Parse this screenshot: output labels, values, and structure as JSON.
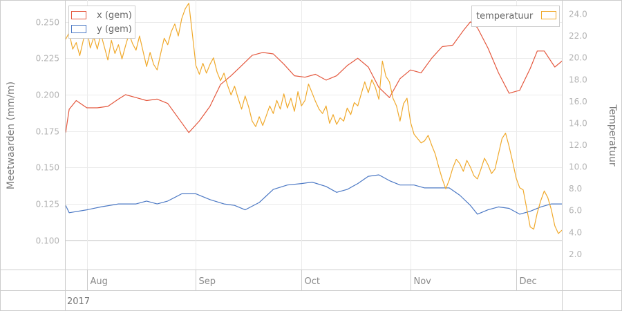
{
  "chart_data": {
    "type": "line",
    "left_axis": {
      "label": "Meetwaarden (mm/m)",
      "range": [
        0.08,
        0.265
      ],
      "ticks": [
        "0.100",
        "0.125",
        "0.150",
        "0.175",
        "0.200",
        "0.225",
        "0.250"
      ]
    },
    "right_axis": {
      "label": "Temperatuur",
      "range": [
        0.6,
        25.3
      ],
      "ticks": [
        "2.0",
        "4.0",
        "6.0",
        "8.0",
        "10.0",
        "12.0",
        "14.0",
        "16.0",
        "18.0",
        "20.0",
        "22.0",
        "24.0"
      ]
    },
    "x_axis": {
      "range": [
        "2017-07-26",
        "2017-12-14"
      ],
      "ticks": [
        {
          "date": "2017-08-01",
          "label": "Aug"
        },
        {
          "date": "2017-09-01",
          "label": "Sep"
        },
        {
          "date": "2017-10-01",
          "label": "Oct"
        },
        {
          "date": "2017-11-01",
          "label": "Nov"
        },
        {
          "date": "2017-12-01",
          "label": "Dec"
        }
      ],
      "year_label": "2017"
    },
    "legend_left": {
      "position": "top-left",
      "items": [
        "x (gem)",
        "y (gem)"
      ]
    },
    "legend_right": {
      "position": "top-right",
      "items": [
        "temperatuur"
      ]
    },
    "grid": true,
    "series": [
      {
        "name": "x (gem)",
        "axis": "left",
        "color": "#e4573d",
        "points": [
          [
            "2017-07-26",
            0.174
          ],
          [
            "2017-07-27",
            0.19
          ],
          [
            "2017-07-29",
            0.196
          ],
          [
            "2017-08-01",
            0.191
          ],
          [
            "2017-08-04",
            0.191
          ],
          [
            "2017-08-07",
            0.192
          ],
          [
            "2017-08-10",
            0.197
          ],
          [
            "2017-08-12",
            0.2
          ],
          [
            "2017-08-15",
            0.198
          ],
          [
            "2017-08-18",
            0.196
          ],
          [
            "2017-08-21",
            0.197
          ],
          [
            "2017-08-24",
            0.194
          ],
          [
            "2017-08-27",
            0.184
          ],
          [
            "2017-08-30",
            0.174
          ],
          [
            "2017-09-02",
            0.182
          ],
          [
            "2017-09-05",
            0.192
          ],
          [
            "2017-09-08",
            0.207
          ],
          [
            "2017-09-11",
            0.213
          ],
          [
            "2017-09-14",
            0.22
          ],
          [
            "2017-09-17",
            0.227
          ],
          [
            "2017-09-20",
            0.229
          ],
          [
            "2017-09-23",
            0.228
          ],
          [
            "2017-09-26",
            0.221
          ],
          [
            "2017-09-29",
            0.213
          ],
          [
            "2017-10-02",
            0.212
          ],
          [
            "2017-10-05",
            0.214
          ],
          [
            "2017-10-08",
            0.21
          ],
          [
            "2017-10-11",
            0.213
          ],
          [
            "2017-10-14",
            0.22
          ],
          [
            "2017-10-17",
            0.225
          ],
          [
            "2017-10-20",
            0.219
          ],
          [
            "2017-10-23",
            0.205
          ],
          [
            "2017-10-26",
            0.198
          ],
          [
            "2017-10-29",
            0.211
          ],
          [
            "2017-11-01",
            0.217
          ],
          [
            "2017-11-04",
            0.215
          ],
          [
            "2017-11-07",
            0.225
          ],
          [
            "2017-11-10",
            0.233
          ],
          [
            "2017-11-13",
            0.234
          ],
          [
            "2017-11-16",
            0.244
          ],
          [
            "2017-11-18",
            0.25
          ],
          [
            "2017-11-20",
            0.246
          ],
          [
            "2017-11-23",
            0.232
          ],
          [
            "2017-11-26",
            0.215
          ],
          [
            "2017-11-29",
            0.201
          ],
          [
            "2017-12-02",
            0.203
          ],
          [
            "2017-12-05",
            0.218
          ],
          [
            "2017-12-07",
            0.23
          ],
          [
            "2017-12-09",
            0.23
          ],
          [
            "2017-12-12",
            0.219
          ],
          [
            "2017-12-14",
            0.223
          ],
          [
            "2017-12-16",
            0.23
          ]
        ]
      },
      {
        "name": "y (gem)",
        "axis": "left",
        "color": "#4b78c4",
        "points": [
          [
            "2017-07-26",
            0.124
          ],
          [
            "2017-07-27",
            0.119
          ],
          [
            "2017-08-01",
            0.121
          ],
          [
            "2017-08-05",
            0.123
          ],
          [
            "2017-08-10",
            0.125
          ],
          [
            "2017-08-15",
            0.125
          ],
          [
            "2017-08-18",
            0.127
          ],
          [
            "2017-08-21",
            0.125
          ],
          [
            "2017-08-24",
            0.127
          ],
          [
            "2017-08-28",
            0.132
          ],
          [
            "2017-09-01",
            0.132
          ],
          [
            "2017-09-05",
            0.128
          ],
          [
            "2017-09-09",
            0.125
          ],
          [
            "2017-09-12",
            0.124
          ],
          [
            "2017-09-15",
            0.121
          ],
          [
            "2017-09-19",
            0.126
          ],
          [
            "2017-09-23",
            0.135
          ],
          [
            "2017-09-27",
            0.138
          ],
          [
            "2017-10-01",
            0.139
          ],
          [
            "2017-10-04",
            0.14
          ],
          [
            "2017-10-08",
            0.137
          ],
          [
            "2017-10-11",
            0.133
          ],
          [
            "2017-10-14",
            0.135
          ],
          [
            "2017-10-17",
            0.139
          ],
          [
            "2017-10-20",
            0.144
          ],
          [
            "2017-10-23",
            0.145
          ],
          [
            "2017-10-26",
            0.141
          ],
          [
            "2017-10-29",
            0.138
          ],
          [
            "2017-11-02",
            0.138
          ],
          [
            "2017-11-05",
            0.136
          ],
          [
            "2017-11-08",
            0.136
          ],
          [
            "2017-11-12",
            0.136
          ],
          [
            "2017-11-15",
            0.131
          ],
          [
            "2017-11-18",
            0.124
          ],
          [
            "2017-11-20",
            0.118
          ],
          [
            "2017-11-23",
            0.121
          ],
          [
            "2017-11-26",
            0.123
          ],
          [
            "2017-11-29",
            0.122
          ],
          [
            "2017-12-02",
            0.118
          ],
          [
            "2017-12-05",
            0.12
          ],
          [
            "2017-12-08",
            0.123
          ],
          [
            "2017-12-11",
            0.125
          ],
          [
            "2017-12-14",
            0.125
          ],
          [
            "2017-12-16",
            0.122
          ]
        ]
      },
      {
        "name": "temperatuur",
        "axis": "right",
        "color": "#f0a92b",
        "points": [
          [
            "2017-07-26",
            21.7
          ],
          [
            "2017-07-27",
            22.3
          ],
          [
            "2017-07-28",
            20.8
          ],
          [
            "2017-07-29",
            21.4
          ],
          [
            "2017-07-30",
            20.2
          ],
          [
            "2017-07-31",
            21.6
          ],
          [
            "2017-08-01",
            22.7
          ],
          [
            "2017-08-02",
            20.9
          ],
          [
            "2017-08-03",
            21.9
          ],
          [
            "2017-08-04",
            20.8
          ],
          [
            "2017-08-05",
            22.2
          ],
          [
            "2017-08-06",
            21.0
          ],
          [
            "2017-08-07",
            19.8
          ],
          [
            "2017-08-08",
            21.6
          ],
          [
            "2017-08-09",
            20.4
          ],
          [
            "2017-08-10",
            21.2
          ],
          [
            "2017-08-11",
            19.9
          ],
          [
            "2017-08-12",
            21.1
          ],
          [
            "2017-08-13",
            22.2
          ],
          [
            "2017-08-14",
            21.3
          ],
          [
            "2017-08-15",
            20.7
          ],
          [
            "2017-08-16",
            22.0
          ],
          [
            "2017-08-17",
            20.6
          ],
          [
            "2017-08-18",
            19.2
          ],
          [
            "2017-08-19",
            20.5
          ],
          [
            "2017-08-20",
            19.4
          ],
          [
            "2017-08-21",
            18.9
          ],
          [
            "2017-08-22",
            20.4
          ],
          [
            "2017-08-23",
            21.8
          ],
          [
            "2017-08-24",
            21.2
          ],
          [
            "2017-08-25",
            22.4
          ],
          [
            "2017-08-26",
            23.1
          ],
          [
            "2017-08-27",
            22.0
          ],
          [
            "2017-08-28",
            23.6
          ],
          [
            "2017-08-29",
            24.5
          ],
          [
            "2017-08-30",
            25.0
          ],
          [
            "2017-08-31",
            22.2
          ],
          [
            "2017-09-01",
            19.3
          ],
          [
            "2017-09-02",
            18.5
          ],
          [
            "2017-09-03",
            19.5
          ],
          [
            "2017-09-04",
            18.6
          ],
          [
            "2017-09-05",
            19.4
          ],
          [
            "2017-09-06",
            20.0
          ],
          [
            "2017-09-07",
            18.7
          ],
          [
            "2017-09-08",
            17.9
          ],
          [
            "2017-09-09",
            18.6
          ],
          [
            "2017-09-10",
            17.5
          ],
          [
            "2017-09-11",
            16.6
          ],
          [
            "2017-09-12",
            17.4
          ],
          [
            "2017-09-13",
            16.3
          ],
          [
            "2017-09-14",
            15.3
          ],
          [
            "2017-09-15",
            16.5
          ],
          [
            "2017-09-16",
            15.5
          ],
          [
            "2017-09-17",
            14.2
          ],
          [
            "2017-09-18",
            13.7
          ],
          [
            "2017-09-19",
            14.6
          ],
          [
            "2017-09-20",
            13.8
          ],
          [
            "2017-09-21",
            14.7
          ],
          [
            "2017-09-22",
            15.6
          ],
          [
            "2017-09-23",
            14.9
          ],
          [
            "2017-09-24",
            16.1
          ],
          [
            "2017-09-25",
            15.3
          ],
          [
            "2017-09-26",
            16.7
          ],
          [
            "2017-09-27",
            15.4
          ],
          [
            "2017-09-28",
            16.3
          ],
          [
            "2017-09-29",
            15.1
          ],
          [
            "2017-09-30",
            16.9
          ],
          [
            "2017-10-01",
            15.6
          ],
          [
            "2017-10-02",
            16.1
          ],
          [
            "2017-10-03",
            17.6
          ],
          [
            "2017-10-04",
            16.8
          ],
          [
            "2017-10-05",
            16.0
          ],
          [
            "2017-10-06",
            15.3
          ],
          [
            "2017-10-07",
            14.9
          ],
          [
            "2017-10-08",
            15.6
          ],
          [
            "2017-10-09",
            14.0
          ],
          [
            "2017-10-10",
            14.8
          ],
          [
            "2017-10-11",
            13.9
          ],
          [
            "2017-10-12",
            14.5
          ],
          [
            "2017-10-13",
            14.2
          ],
          [
            "2017-10-14",
            15.4
          ],
          [
            "2017-10-15",
            14.8
          ],
          [
            "2017-10-16",
            15.9
          ],
          [
            "2017-10-17",
            15.6
          ],
          [
            "2017-10-18",
            16.7
          ],
          [
            "2017-10-19",
            17.8
          ],
          [
            "2017-10-20",
            16.8
          ],
          [
            "2017-10-21",
            18.0
          ],
          [
            "2017-10-22",
            17.3
          ],
          [
            "2017-10-23",
            16.2
          ],
          [
            "2017-10-24",
            19.7
          ],
          [
            "2017-10-25",
            18.3
          ],
          [
            "2017-10-26",
            17.8
          ],
          [
            "2017-10-27",
            16.3
          ],
          [
            "2017-10-28",
            15.6
          ],
          [
            "2017-10-29",
            14.2
          ],
          [
            "2017-10-30",
            15.8
          ],
          [
            "2017-10-31",
            16.3
          ],
          [
            "2017-11-01",
            14.1
          ],
          [
            "2017-11-02",
            13.0
          ],
          [
            "2017-11-03",
            12.6
          ],
          [
            "2017-11-04",
            12.2
          ],
          [
            "2017-11-05",
            12.4
          ],
          [
            "2017-11-06",
            12.9
          ],
          [
            "2017-11-07",
            12.0
          ],
          [
            "2017-11-08",
            11.2
          ],
          [
            "2017-11-09",
            10.0
          ],
          [
            "2017-11-10",
            8.9
          ],
          [
            "2017-11-11",
            8.0
          ],
          [
            "2017-11-12",
            8.8
          ],
          [
            "2017-11-13",
            9.9
          ],
          [
            "2017-11-14",
            10.7
          ],
          [
            "2017-11-15",
            10.3
          ],
          [
            "2017-11-16",
            9.6
          ],
          [
            "2017-11-17",
            10.6
          ],
          [
            "2017-11-18",
            10.0
          ],
          [
            "2017-11-19",
            9.2
          ],
          [
            "2017-11-20",
            8.9
          ],
          [
            "2017-11-21",
            9.8
          ],
          [
            "2017-11-22",
            10.8
          ],
          [
            "2017-11-23",
            10.2
          ],
          [
            "2017-11-24",
            9.4
          ],
          [
            "2017-11-25",
            9.8
          ],
          [
            "2017-11-26",
            11.2
          ],
          [
            "2017-11-27",
            12.6
          ],
          [
            "2017-11-28",
            13.1
          ],
          [
            "2017-11-29",
            11.9
          ],
          [
            "2017-11-30",
            10.5
          ],
          [
            "2017-12-01",
            9.0
          ],
          [
            "2017-12-02",
            8.1
          ],
          [
            "2017-12-03",
            7.9
          ],
          [
            "2017-12-04",
            6.2
          ],
          [
            "2017-12-05",
            4.5
          ],
          [
            "2017-12-06",
            4.3
          ],
          [
            "2017-12-07",
            5.8
          ],
          [
            "2017-12-08",
            6.9
          ],
          [
            "2017-12-09",
            7.8
          ],
          [
            "2017-12-10",
            7.2
          ],
          [
            "2017-12-11",
            6.1
          ],
          [
            "2017-12-12",
            4.6
          ],
          [
            "2017-12-13",
            3.9
          ],
          [
            "2017-12-14",
            4.2
          ],
          [
            "2017-12-15",
            4.0
          ],
          [
            "2017-12-16",
            5.2
          ]
        ]
      }
    ]
  }
}
